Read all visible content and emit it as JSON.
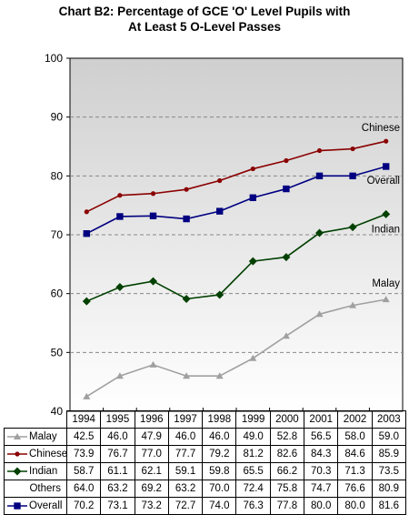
{
  "title": {
    "line1": "Chart B2: Percentage of GCE 'O' Level Pupils with",
    "line2": "At Least 5 O-Level Passes"
  },
  "chart_data": {
    "type": "line",
    "title": "Chart B2: Percentage of GCE 'O' Level Pupils with At Least 5 O-Level Passes",
    "xlabel": "",
    "ylabel": "",
    "categories": [
      "1994",
      "1995",
      "1996",
      "1997",
      "1998",
      "1999",
      "2000",
      "2001",
      "2002",
      "2003"
    ],
    "ylim": [
      40,
      100
    ],
    "yticks": [
      40,
      50,
      60,
      70,
      80,
      90,
      100
    ],
    "grid": true,
    "series": [
      {
        "name": "Malay",
        "values": [
          42.5,
          46.0,
          47.9,
          46.0,
          46.0,
          49.0,
          52.8,
          56.5,
          58.0,
          59.0
        ],
        "color": "#a0a0a0",
        "marker": "triangle",
        "plotted": true,
        "end_label": "Malay"
      },
      {
        "name": "Chinese",
        "values": [
          73.9,
          76.7,
          77.0,
          77.7,
          79.2,
          81.2,
          82.6,
          84.3,
          84.6,
          85.9
        ],
        "color": "#8b0000",
        "marker": "circle",
        "plotted": true,
        "end_label": "Chinese"
      },
      {
        "name": "Indian",
        "values": [
          58.7,
          61.1,
          62.1,
          59.1,
          59.8,
          65.5,
          66.2,
          70.3,
          71.3,
          73.5
        ],
        "color": "#004000",
        "marker": "diamond",
        "plotted": true,
        "end_label": "Indian"
      },
      {
        "name": "Others",
        "values": [
          64.0,
          63.2,
          69.2,
          63.2,
          70.0,
          72.4,
          75.8,
          74.7,
          76.6,
          80.9
        ],
        "color": "none",
        "marker": "none",
        "plotted": false,
        "end_label": ""
      },
      {
        "name": "Overall",
        "values": [
          70.2,
          73.1,
          73.2,
          72.7,
          74.0,
          76.3,
          77.8,
          80.0,
          80.0,
          81.6
        ],
        "color": "#000080",
        "marker": "square",
        "plotted": true,
        "end_label": "Overall"
      }
    ]
  }
}
